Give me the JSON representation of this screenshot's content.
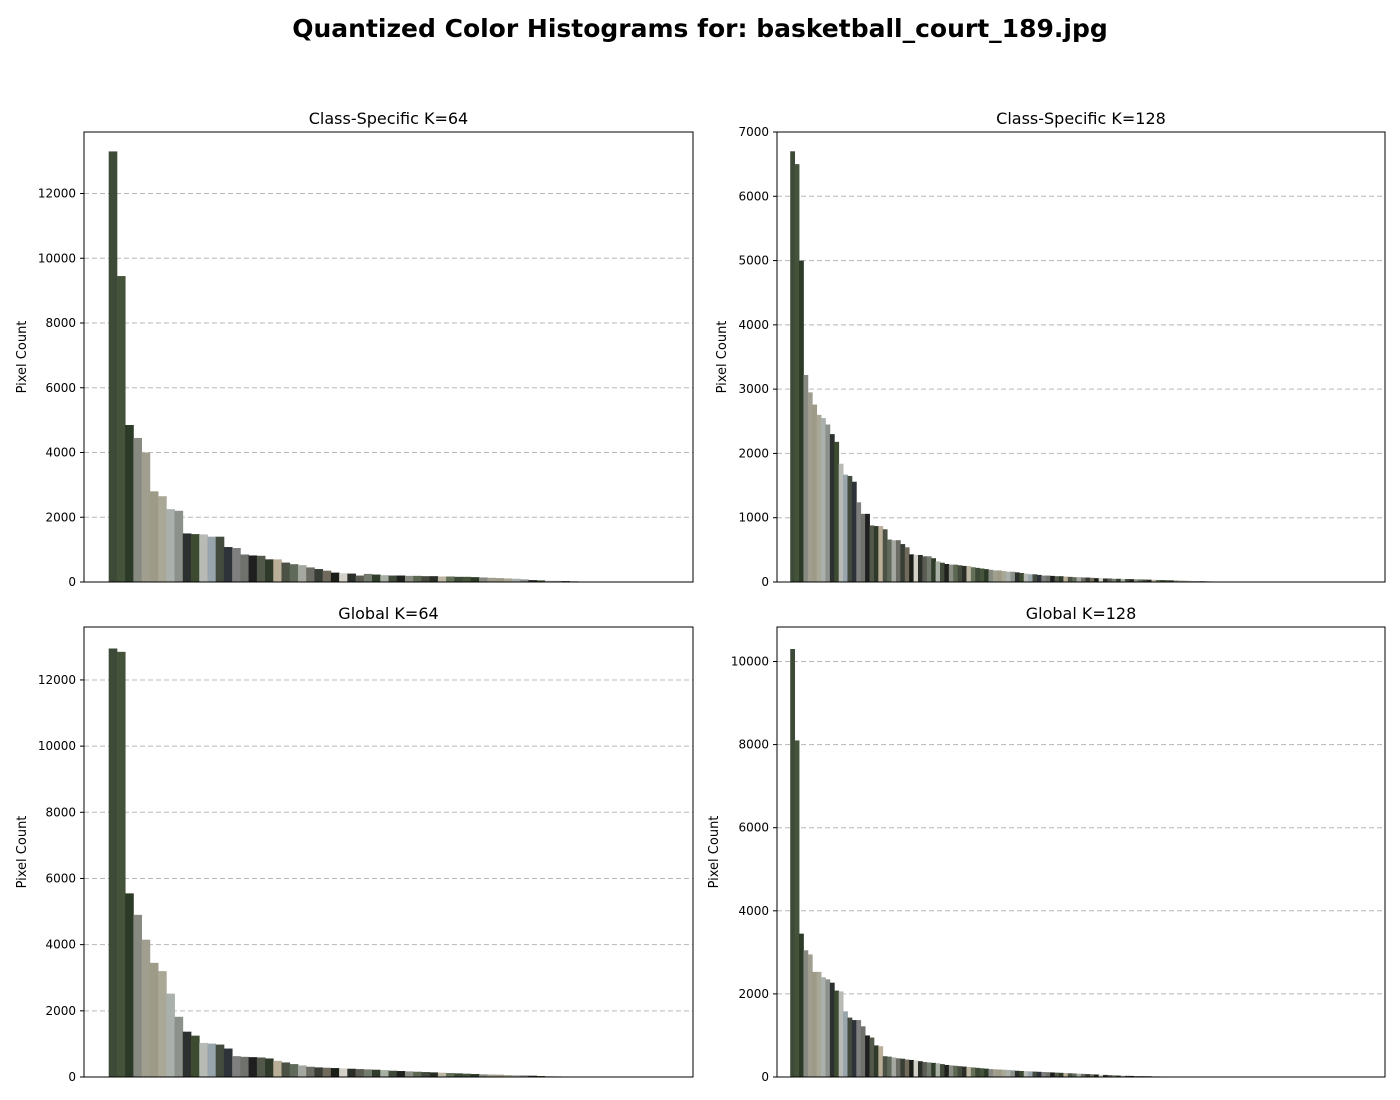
{
  "suptitle": "Quantized Color Histograms for: basketball_court_189.jpg",
  "palette": [
    "#3d4a38",
    "#445339",
    "#2c3b27",
    "#868a80",
    "#a09e8e",
    "#9e9a88",
    "#a9a796",
    "#aab0ab",
    "#8c918c",
    "#2c302f",
    "#3d4c31",
    "#b8bab5",
    "#98a5ac",
    "#434b3f",
    "#2e3339",
    "#7f7f7f",
    "#6f716c",
    "#1e1f1e",
    "#52584a",
    "#2f3a2b",
    "#bbae98",
    "#4b5245",
    "#5f6a5a",
    "#a5a8a0",
    "#6b6c63",
    "#383d36",
    "#6f6a5b",
    "#1b1d18",
    "#d4d2c8",
    "#2b2f2a",
    "#5b5d55",
    "#737b6f",
    "#2f3d2a",
    "#a8b0a6",
    "#404a3a",
    "#1f211e",
    "#8a8d83",
    "#5c6852",
    "#454a3f",
    "#2a2e26",
    "#bdb6a3",
    "#657058"
  ],
  "chart_data": [
    {
      "type": "bar",
      "title": "Class-Specific K=64",
      "xlabel": "",
      "ylabel": "Pixel Count",
      "ylim": [
        0,
        13900
      ],
      "yticks": [
        0,
        2000,
        4000,
        6000,
        8000,
        10000,
        12000
      ],
      "grid": true,
      "values": [
        13300,
        9450,
        4850,
        4450,
        4000,
        2800,
        2650,
        2250,
        2200,
        1500,
        1480,
        1470,
        1400,
        1400,
        1080,
        1050,
        850,
        820,
        810,
        700,
        700,
        600,
        550,
        520,
        450,
        400,
        350,
        290,
        270,
        260,
        200,
        250,
        230,
        210,
        200,
        200,
        190,
        190,
        180,
        180,
        170,
        170,
        160,
        160,
        150,
        140,
        130,
        120,
        110,
        100,
        80,
        60,
        50,
        40,
        35,
        30,
        20,
        0,
        0,
        0,
        0,
        0,
        0,
        0
      ]
    },
    {
      "type": "bar",
      "title": "Class-Specific K=128",
      "xlabel": "",
      "ylabel": "Pixel Count",
      "ylim": [
        0,
        7000
      ],
      "yticks": [
        0,
        1000,
        2000,
        3000,
        4000,
        5000,
        6000,
        7000
      ],
      "grid": true,
      "values": [
        6700,
        6500,
        5000,
        3220,
        2950,
        2760,
        2600,
        2550,
        2450,
        2300,
        2180,
        1840,
        1670,
        1650,
        1560,
        1240,
        1060,
        1060,
        880,
        870,
        870,
        820,
        660,
        650,
        650,
        590,
        540,
        430,
        420,
        420,
        400,
        400,
        370,
        320,
        300,
        280,
        270,
        270,
        260,
        250,
        250,
        230,
        220,
        210,
        200,
        190,
        180,
        180,
        170,
        160,
        160,
        150,
        140,
        130,
        120,
        120,
        110,
        100,
        100,
        95,
        90,
        90,
        85,
        80,
        75,
        75,
        70,
        70,
        65,
        60,
        60,
        55,
        55,
        50,
        50,
        48,
        46,
        44,
        42,
        40,
        38,
        36,
        34,
        32,
        30,
        28,
        26,
        24,
        22,
        20,
        18,
        16,
        14,
        12,
        10,
        10,
        8,
        8,
        6,
        6,
        5,
        5,
        4,
        4,
        3,
        3,
        2,
        2,
        1,
        1,
        0,
        0,
        0,
        0,
        0,
        0,
        0,
        0,
        0,
        0,
        0,
        0,
        0,
        0,
        0,
        0,
        0,
        0
      ]
    },
    {
      "type": "bar",
      "title": "Global K=64",
      "xlabel": "",
      "ylabel": "Pixel Count",
      "ylim": [
        0,
        13600
      ],
      "yticks": [
        0,
        2000,
        4000,
        6000,
        8000,
        10000,
        12000
      ],
      "grid": true,
      "values": [
        12950,
        12850,
        5550,
        4900,
        4150,
        3450,
        3200,
        2520,
        1820,
        1370,
        1250,
        1030,
        1010,
        980,
        860,
        630,
        610,
        600,
        590,
        560,
        490,
        440,
        390,
        350,
        310,
        290,
        280,
        270,
        260,
        250,
        240,
        230,
        220,
        210,
        190,
        180,
        170,
        160,
        150,
        140,
        130,
        120,
        110,
        100,
        90,
        80,
        75,
        70,
        60,
        55,
        50,
        40,
        30,
        25,
        20,
        15,
        10,
        0,
        0,
        0,
        0,
        0,
        0,
        0
      ]
    },
    {
      "type": "bar",
      "title": "Global K=128",
      "xlabel": "",
      "ylabel": "Pixel Count",
      "ylim": [
        0,
        10830
      ],
      "yticks": [
        0,
        2000,
        4000,
        6000,
        8000,
        10000
      ],
      "grid": true,
      "values": [
        10300,
        8100,
        3450,
        3050,
        2950,
        2530,
        2530,
        2400,
        2350,
        2270,
        2080,
        2060,
        1580,
        1430,
        1370,
        1370,
        1220,
        1000,
        950,
        760,
        740,
        500,
        490,
        470,
        450,
        440,
        420,
        410,
        400,
        380,
        360,
        350,
        340,
        330,
        310,
        290,
        280,
        270,
        260,
        250,
        240,
        230,
        220,
        210,
        200,
        190,
        185,
        180,
        175,
        170,
        160,
        150,
        145,
        140,
        135,
        130,
        125,
        120,
        115,
        110,
        105,
        100,
        95,
        90,
        85,
        80,
        75,
        70,
        65,
        60,
        55,
        50,
        45,
        40,
        35,
        30,
        28,
        26,
        24,
        22,
        20,
        18,
        16,
        14,
        12,
        10,
        8,
        6,
        4,
        2,
        0,
        0,
        0,
        0,
        0,
        0,
        0,
        0,
        0,
        0,
        0,
        0,
        0,
        0,
        0,
        0,
        0,
        0,
        0,
        0,
        0,
        0,
        0,
        0,
        0,
        0,
        0,
        0,
        0,
        0,
        0,
        0,
        0,
        0,
        0,
        0,
        0,
        0
      ]
    }
  ]
}
